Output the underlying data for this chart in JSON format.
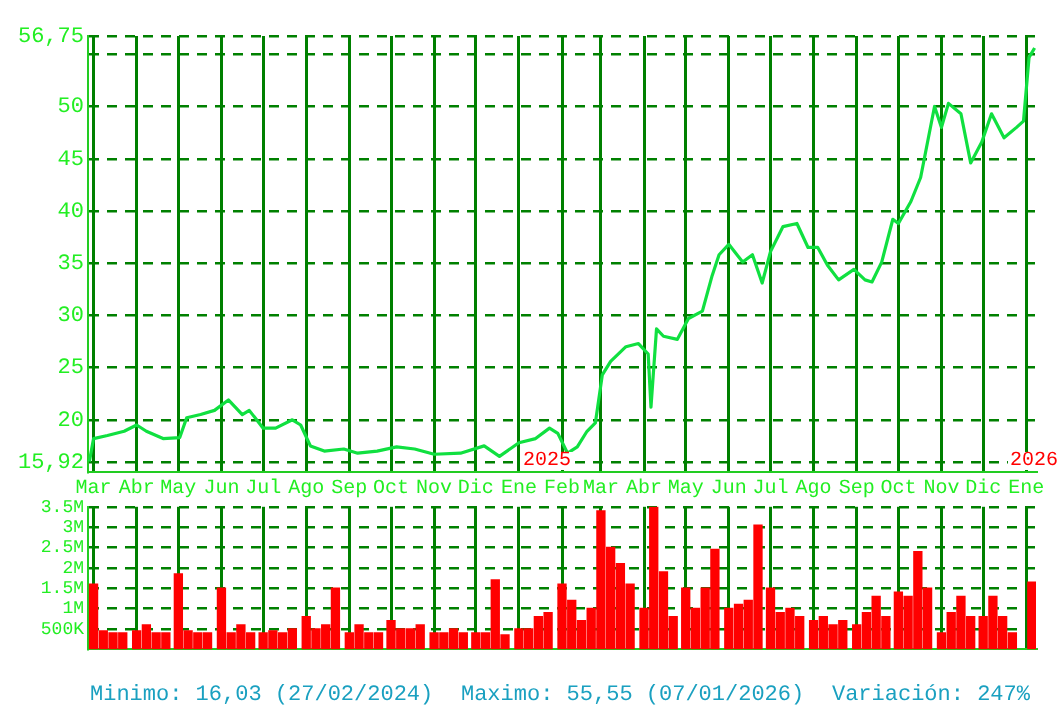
{
  "chart_data": [
    {
      "type": "line",
      "x": [
        "2024-02-27",
        "2024-03-01",
        "2024-03-11",
        "2024-03-23",
        "2024-04-01",
        "2024-04-08",
        "2024-04-20",
        "2024-05-02",
        "2024-05-07",
        "2024-05-17",
        "2024-05-27",
        "2024-06-06",
        "2024-06-16",
        "2024-06-21",
        "2024-07-01",
        "2024-07-10",
        "2024-07-22",
        "2024-07-28",
        "2024-08-04",
        "2024-08-14",
        "2024-08-28",
        "2024-09-07",
        "2024-09-21",
        "2024-10-05",
        "2024-10-18",
        "2024-11-01",
        "2024-11-20",
        "2024-12-07",
        "2024-12-18",
        "2025-01-01",
        "2025-01-13",
        "2025-01-23",
        "2025-01-29",
        "2025-02-05",
        "2025-02-12",
        "2025-02-19",
        "2025-02-25",
        "2025-03-02",
        "2025-03-08",
        "2025-03-19",
        "2025-03-28",
        "2025-04-04",
        "2025-04-06",
        "2025-04-10",
        "2025-04-15",
        "2025-04-25",
        "2025-05-03",
        "2025-05-13",
        "2025-05-20",
        "2025-05-25",
        "2025-06-01",
        "2025-06-11",
        "2025-06-18",
        "2025-06-25",
        "2025-07-01",
        "2025-07-10",
        "2025-07-20",
        "2025-07-28",
        "2025-08-04",
        "2025-08-11",
        "2025-08-19",
        "2025-08-30",
        "2025-09-07",
        "2025-09-12",
        "2025-09-19",
        "2025-09-27",
        "2025-10-01",
        "2025-10-10",
        "2025-10-17",
        "2025-10-27",
        "2025-11-01",
        "2025-11-06",
        "2025-11-15",
        "2025-11-22",
        "2025-11-30",
        "2025-12-07",
        "2025-12-16",
        "2025-12-25",
        "2025-12-30",
        "2026-01-03",
        "2026-01-07"
      ],
      "series": [
        {
          "color": "#10e040",
          "values": [
            16.0,
            18.2,
            18.5,
            18.9,
            19.5,
            18.9,
            18.2,
            18.3,
            20.2,
            20.5,
            20.9,
            21.9,
            20.5,
            20.9,
            19.2,
            19.2,
            20.0,
            19.5,
            17.5,
            17.0,
            17.2,
            16.8,
            17.0,
            17.4,
            17.2,
            16.7,
            16.8,
            17.5,
            16.5,
            17.8,
            18.2,
            19.2,
            18.7,
            16.8,
            17.4,
            18.9,
            19.7,
            24.3,
            25.6,
            27.0,
            27.3,
            26.3,
            21.2,
            28.7,
            28.0,
            27.7,
            29.7,
            30.4,
            33.8,
            35.8,
            36.8,
            35.1,
            35.8,
            33.1,
            36.1,
            38.5,
            38.8,
            36.5,
            36.5,
            34.8,
            33.4,
            34.4,
            33.4,
            33.2,
            35.1,
            39.2,
            38.8,
            40.9,
            43.2,
            50.0,
            48.0,
            50.3,
            49.3,
            44.6,
            46.6,
            49.3,
            47.0,
            48.0,
            48.6,
            54.7,
            55.6
          ]
        }
      ],
      "xlim": [
        "2024-02-26",
        "2026-01-08"
      ],
      "xticks": [
        {
          "value": "2024-03-01",
          "label": "Mar"
        },
        {
          "value": "2024-04-01",
          "label": "Abr"
        },
        {
          "value": "2024-05-01",
          "label": "May"
        },
        {
          "value": "2024-06-01",
          "label": "Jun"
        },
        {
          "value": "2024-07-01",
          "label": "Jul"
        },
        {
          "value": "2024-08-01",
          "label": "Ago"
        },
        {
          "value": "2024-09-01",
          "label": "Sep"
        },
        {
          "value": "2024-10-01",
          "label": "Oct"
        },
        {
          "value": "2024-11-01",
          "label": "Nov"
        },
        {
          "value": "2024-12-01",
          "label": "Dic"
        },
        {
          "value": "2025-01-01",
          "label": "Ene"
        },
        {
          "value": "2025-02-01",
          "label": "Feb"
        },
        {
          "value": "2025-03-01",
          "label": "Mar"
        },
        {
          "value": "2025-04-01",
          "label": "Abr"
        },
        {
          "value": "2025-05-01",
          "label": "May"
        },
        {
          "value": "2025-06-01",
          "label": "Jun"
        },
        {
          "value": "2025-07-01",
          "label": "Jul"
        },
        {
          "value": "2025-08-01",
          "label": "Ago"
        },
        {
          "value": "2025-09-01",
          "label": "Sep"
        },
        {
          "value": "2025-10-01",
          "label": "Oct"
        },
        {
          "value": "2025-11-01",
          "label": "Nov"
        },
        {
          "value": "2025-12-01",
          "label": "Dic"
        },
        {
          "value": "2026-01-01",
          "label": "Ene"
        }
      ],
      "ylim": [
        15.0,
        56.75
      ],
      "yticks": [
        {
          "value": 15.92,
          "label": "15,92"
        },
        20,
        25,
        30,
        35,
        40,
        45,
        50,
        {
          "value": 55,
          "label": null
        },
        {
          "value": 56.75,
          "label": "56,75"
        }
      ],
      "grid": true,
      "annotations": [
        "2025",
        "2026"
      ]
    },
    {
      "type": "bar",
      "x": [
        "2024-03-01",
        "2024-03-08",
        "2024-03-15",
        "2024-03-22",
        "2024-04-01",
        "2024-04-08",
        "2024-04-15",
        "2024-04-22",
        "2024-05-01",
        "2024-05-08",
        "2024-05-15",
        "2024-05-22",
        "2024-06-01",
        "2024-06-08",
        "2024-06-15",
        "2024-06-22",
        "2024-07-01",
        "2024-07-08",
        "2024-07-15",
        "2024-07-22",
        "2024-08-01",
        "2024-08-08",
        "2024-08-15",
        "2024-08-22",
        "2024-09-01",
        "2024-09-08",
        "2024-09-15",
        "2024-09-22",
        "2024-10-01",
        "2024-10-08",
        "2024-10-15",
        "2024-10-22",
        "2024-11-01",
        "2024-11-08",
        "2024-11-15",
        "2024-11-22",
        "2024-12-01",
        "2024-12-08",
        "2024-12-15",
        "2024-12-22",
        "2025-01-01",
        "2025-01-08",
        "2025-01-15",
        "2025-01-22",
        "2025-02-01",
        "2025-02-08",
        "2025-02-15",
        "2025-02-22",
        "2025-03-01",
        "2025-03-08",
        "2025-03-15",
        "2025-03-22",
        "2025-04-01",
        "2025-04-08",
        "2025-04-15",
        "2025-04-22",
        "2025-05-01",
        "2025-05-08",
        "2025-05-15",
        "2025-05-22",
        "2025-06-01",
        "2025-06-08",
        "2025-06-15",
        "2025-06-22",
        "2025-07-01",
        "2025-07-08",
        "2025-07-15",
        "2025-07-22",
        "2025-08-01",
        "2025-08-08",
        "2025-08-15",
        "2025-08-22",
        "2025-09-01",
        "2025-09-08",
        "2025-09-15",
        "2025-09-22",
        "2025-10-01",
        "2025-10-08",
        "2025-10-15",
        "2025-10-22",
        "2025-11-01",
        "2025-11-08",
        "2025-11-15",
        "2025-11-22",
        "2025-12-01",
        "2025-12-08",
        "2025-12-15",
        "2025-12-22",
        "2026-01-05"
      ],
      "values": [
        1600000,
        450000,
        400000,
        400000,
        450000,
        600000,
        400000,
        400000,
        1850000,
        450000,
        400000,
        400000,
        1500000,
        400000,
        600000,
        400000,
        400000,
        450000,
        400000,
        500000,
        800000,
        500000,
        600000,
        1500000,
        400000,
        600000,
        400000,
        400000,
        700000,
        500000,
        500000,
        600000,
        400000,
        400000,
        500000,
        400000,
        400000,
        400000,
        1700000,
        350000,
        500000,
        500000,
        800000,
        900000,
        1600000,
        1200000,
        700000,
        1000000,
        3400000,
        2500000,
        2100000,
        1600000,
        1000000,
        3500000,
        1900000,
        800000,
        1500000,
        1000000,
        1500000,
        2450000,
        1000000,
        1100000,
        1200000,
        3050000,
        1500000,
        900000,
        1000000,
        800000,
        700000,
        800000,
        600000,
        700000,
        600000,
        900000,
        1300000,
        800000,
        1400000,
        1300000,
        2400000,
        1500000,
        400000,
        900000,
        1300000,
        800000,
        800000,
        1300000,
        800000,
        400000,
        1650000
      ],
      "color": "#ff0000",
      "xlim": [
        "2024-02-26",
        "2026-01-08"
      ],
      "xticks": [
        {
          "value": "2024-03-01",
          "label": null
        },
        {
          "value": "2024-04-01",
          "label": null
        },
        {
          "value": "2024-05-01",
          "label": null
        },
        {
          "value": "2024-06-01",
          "label": null
        },
        {
          "value": "2024-07-01",
          "label": null
        },
        {
          "value": "2024-08-01",
          "label": null
        },
        {
          "value": "2024-09-01",
          "label": null
        },
        {
          "value": "2024-10-01",
          "label": null
        },
        {
          "value": "2024-11-01",
          "label": null
        },
        {
          "value": "2024-12-01",
          "label": null
        },
        {
          "value": "2025-01-01",
          "label": null
        },
        {
          "value": "2025-02-01",
          "label": null
        },
        {
          "value": "2025-03-01",
          "label": null
        },
        {
          "value": "2025-04-01",
          "label": null
        },
        {
          "value": "2025-05-01",
          "label": null
        },
        {
          "value": "2025-06-01",
          "label": null
        },
        {
          "value": "2025-07-01",
          "label": null
        },
        {
          "value": "2025-08-01",
          "label": null
        },
        {
          "value": "2025-09-01",
          "label": null
        },
        {
          "value": "2025-10-01",
          "label": null
        },
        {
          "value": "2025-11-01",
          "label": null
        },
        {
          "value": "2025-12-01",
          "label": null
        },
        {
          "value": "2026-01-01",
          "label": null
        }
      ],
      "ylim": [
        0,
        3500000
      ],
      "yticks": [
        {
          "value": 500000,
          "label": "500K"
        },
        {
          "value": 1000000,
          "label": "1M"
        },
        {
          "value": 1500000,
          "label": "1.5M"
        },
        {
          "value": 2000000,
          "label": "2M"
        },
        {
          "value": 2500000,
          "label": "2.5M"
        },
        {
          "value": 3000000,
          "label": "3M"
        },
        {
          "value": 3500000,
          "label": "3.5M"
        }
      ],
      "grid": true,
      "tick_labels": "y",
      "annotations": [
        "Minimo: 16,03 (27/02/2024)",
        "Maximo: 55,55 (07/01/2026)",
        "Variación: 247%"
      ]
    }
  ]
}
